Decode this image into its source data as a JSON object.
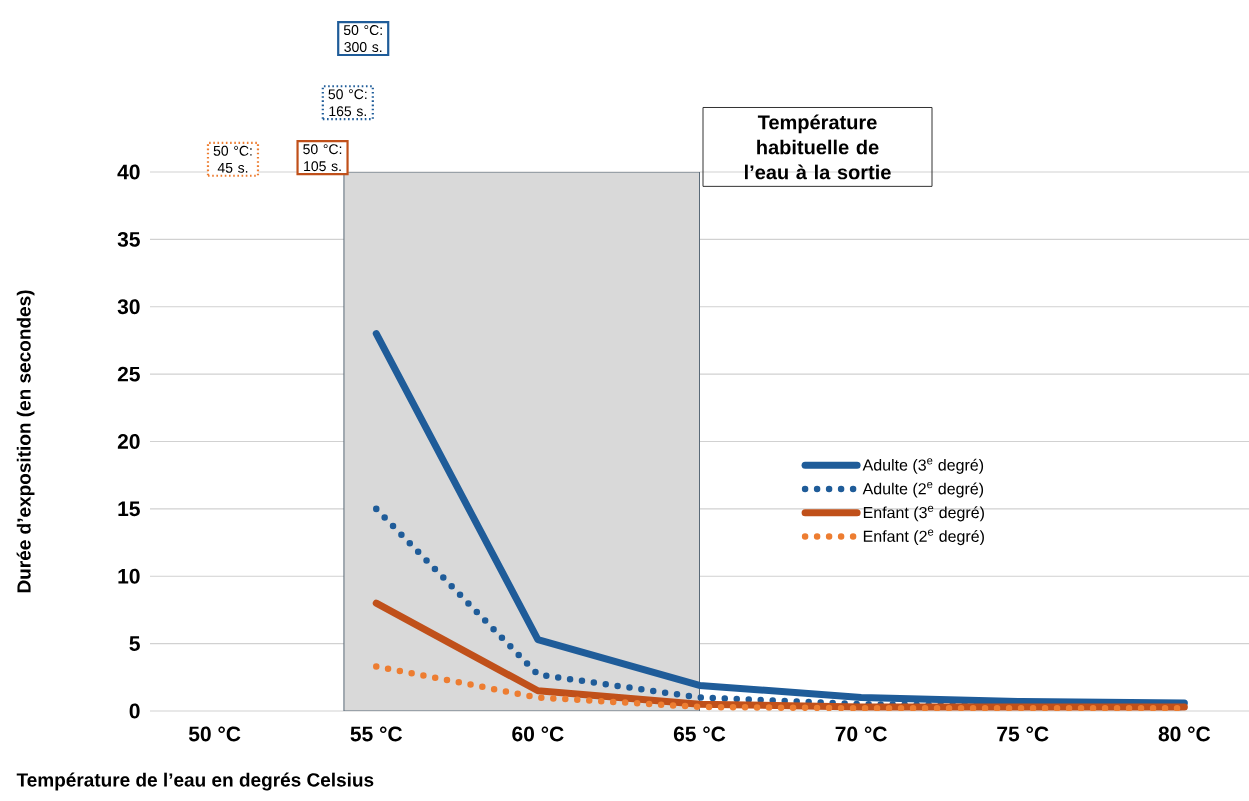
{
  "chart_data": {
    "type": "line",
    "xlabel": "Température de l’eau en degrés Celsius",
    "ylabel": "Durée d’exposition (en secondes)",
    "x": [
      55,
      60,
      65,
      70,
      75,
      80
    ],
    "series": [
      {
        "name": "Adulte (3$^{e}$ degré)",
        "color": "#1f5c99",
        "line_style": "solid",
        "values": [
          28,
          5.3,
          1.9,
          1.0,
          0.7,
          0.6
        ]
      },
      {
        "name": "Adulte (2$^{e}$ degré)",
        "color": "#1f5c99",
        "line_style": "dotted",
        "values": [
          15,
          2.7,
          1.0,
          0.5,
          0.4,
          0.3
        ]
      },
      {
        "name": "Enfant (3$^{e}$ degré)",
        "color": "#c0501a",
        "line_style": "solid",
        "values": [
          8,
          1.5,
          0.5,
          0.3,
          0.3,
          0.3
        ]
      },
      {
        "name": "Enfant (2$^{e}$ degré)",
        "color": "#ed7d31",
        "line_style": "dotted",
        "values": [
          3.3,
          1.0,
          0.3,
          0.2,
          0.2,
          0.2
        ]
      }
    ],
    "xlim": [
      48,
      82
    ],
    "ylim": [
      0,
      40
    ],
    "xticks": [
      {
        "value": 50,
        "label": "50 °C"
      },
      {
        "value": 55,
        "label": "55 °C"
      },
      {
        "value": 60,
        "label": "60 °C"
      },
      {
        "value": 65,
        "label": "65 °C"
      },
      {
        "value": 70,
        "label": "70 °C"
      },
      {
        "value": 75,
        "label": "75 °C"
      },
      {
        "value": 80,
        "label": "80 °C"
      }
    ],
    "yticks": [
      0,
      5,
      10,
      15,
      20,
      25,
      30,
      35,
      40
    ],
    "grid": "y",
    "legend": "right",
    "marker": "none",
    "bands": [
      {
        "axis": "x",
        "from": 54,
        "to": 65,
        "label": "Température habituelle de l’eau à la sortie",
        "color": "#d9d9d9"
      }
    ],
    "annotations": [
      "50 °C: 300 s.",
      "50 °C: 165 s.",
      "50 °C: 105 s.",
      "50 °C: 45 s."
    ]
  }
}
